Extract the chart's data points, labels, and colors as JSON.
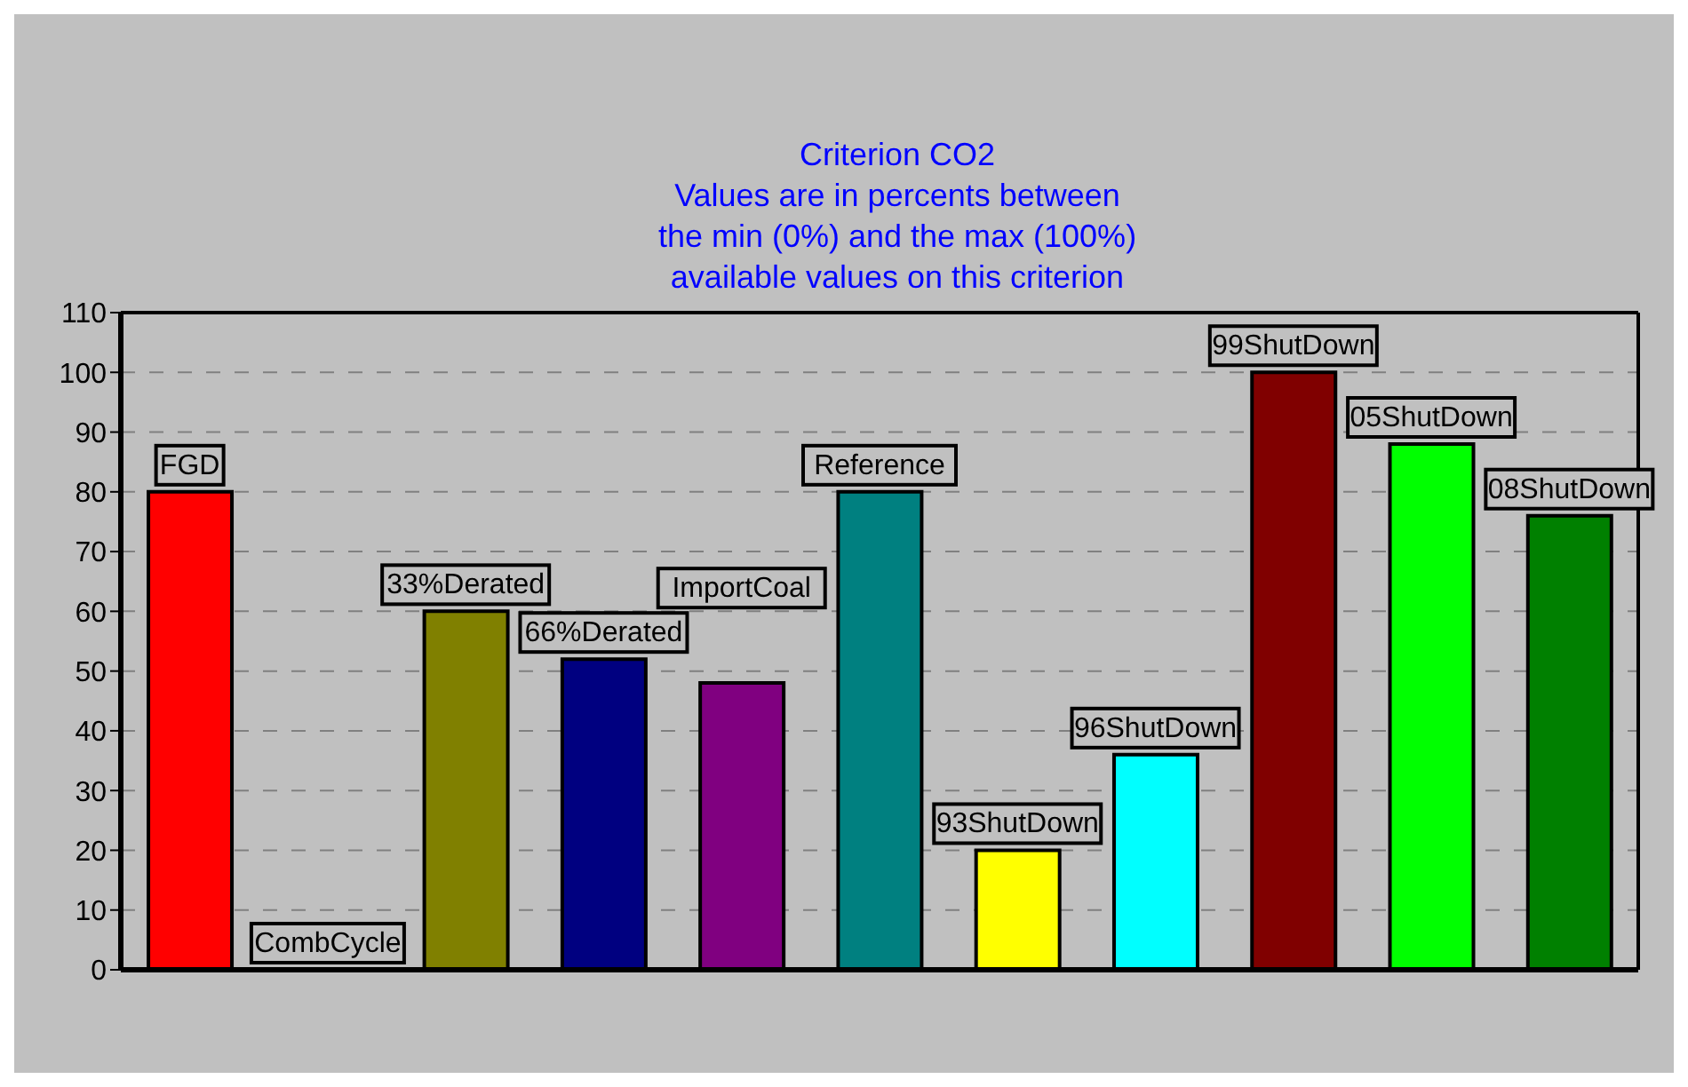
{
  "chart_data": {
    "type": "bar",
    "title": "Criterion CO2",
    "subtitle": "Values are in percents between\nthe min (0%) and the max (100%)\navailable values on this criterion",
    "categories": [
      "FGD",
      "CombCycle",
      "33%Derated",
      "66%Derated",
      "ImportCoal",
      "Reference",
      "93ShutDown",
      "96ShutDown",
      "99ShutDown",
      "05ShutDown",
      "08ShutDown"
    ],
    "values": [
      80,
      0,
      60,
      52,
      48,
      80,
      20,
      36,
      100,
      88,
      76
    ],
    "colors": [
      "#ff0000",
      "#0000ff",
      "#808000",
      "#000080",
      "#800080",
      "#008080",
      "#ffff00",
      "#00ffff",
      "#800000",
      "#00ff00",
      "#008000"
    ],
    "ylim": [
      0,
      110
    ],
    "yticks": [
      0,
      10,
      20,
      30,
      40,
      50,
      60,
      70,
      80,
      90,
      100,
      110
    ],
    "grid": "y",
    "tick_labels": "y"
  }
}
